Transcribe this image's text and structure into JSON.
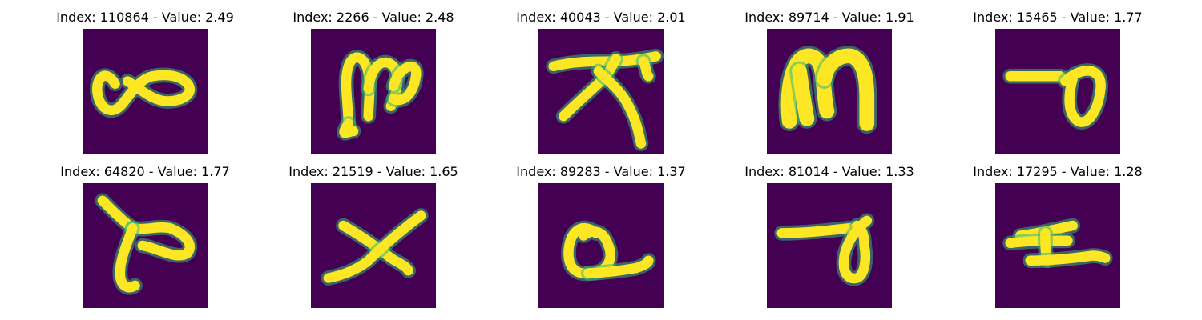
{
  "figure": {
    "background_color": "#440154",
    "stroke_color": "#fde725",
    "edge_color": "#35b779",
    "panels": [
      {
        "title": "Index: 110864 - Value: 2.49",
        "glyph": "infinity-shape"
      },
      {
        "title": "Index: 2266 - Value: 2.48",
        "glyph": "m-loop-shape"
      },
      {
        "title": "Index: 40043 - Value: 2.01",
        "glyph": "lambda-with-bar-shape"
      },
      {
        "title": "Index: 89714 - Value: 1.91",
        "glyph": "m-arch-shape"
      },
      {
        "title": "Index: 15465 - Value: 1.77",
        "glyph": "dash-loop-shape"
      },
      {
        "title": "Index: 64820 - Value: 1.77",
        "glyph": "branch-loop-shape"
      },
      {
        "title": "Index: 21519 - Value: 1.65",
        "glyph": "x-shape"
      },
      {
        "title": "Index: 89283 - Value: 1.37",
        "glyph": "loop-with-tail-shape"
      },
      {
        "title": "Index: 81014 - Value: 1.33",
        "glyph": "dash-teardrop-shape"
      },
      {
        "title": "Index: 17295 - Value: 1.28",
        "glyph": "double-bar-shape"
      }
    ]
  }
}
